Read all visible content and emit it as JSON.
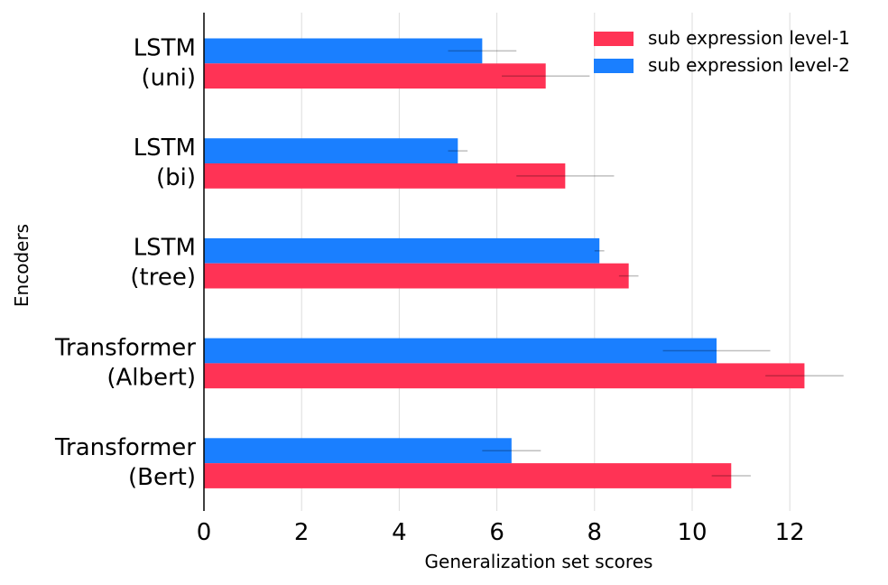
{
  "chart_data": {
    "type": "bar",
    "orientation": "horizontal",
    "categories": [
      [
        "LSTM",
        "(uni)"
      ],
      [
        "LSTM",
        "(bi)"
      ],
      [
        "LSTM",
        "(tree)"
      ],
      [
        "Transformer",
        "(Albert)"
      ],
      [
        "Transformer",
        "(Bert)"
      ]
    ],
    "series": [
      {
        "name": "sub expression level-2",
        "color": "#1a7fff",
        "values": [
          5.7,
          5.2,
          8.1,
          10.5,
          6.3
        ],
        "error": [
          [
            5.0,
            6.4
          ],
          [
            5.0,
            5.4
          ],
          [
            8.0,
            8.2
          ],
          [
            9.4,
            11.6
          ],
          [
            5.7,
            6.9
          ]
        ]
      },
      {
        "name": "sub expression level-1",
        "color": "#ff3355",
        "values": [
          7.0,
          7.4,
          8.7,
          12.3,
          10.8
        ],
        "error": [
          [
            6.1,
            7.9
          ],
          [
            6.4,
            8.4
          ],
          [
            8.5,
            8.9
          ],
          [
            11.5,
            13.1
          ],
          [
            10.4,
            11.2
          ]
        ]
      }
    ],
    "legend_order": [
      "sub expression level-1",
      "sub expression level-2"
    ],
    "legend_position": "top-right",
    "xlabel": "Generalization set scores",
    "ylabel": "Encoders",
    "xlim": [
      0,
      13.5
    ],
    "xticks": [
      0,
      2,
      4,
      6,
      8,
      10,
      12
    ],
    "grid": "vertical"
  }
}
